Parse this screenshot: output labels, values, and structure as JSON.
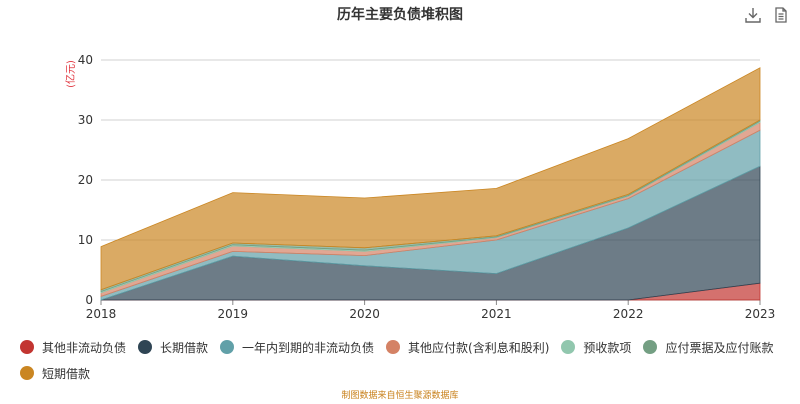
{
  "title": "历年主要负债堆积图",
  "source_note": "制图数据来自恒生聚源数据库",
  "toolbar": {
    "download_icon": "download-icon",
    "data_view_icon": "document-icon"
  },
  "chart_data": {
    "type": "area",
    "stacked": true,
    "title": "历年主要负债堆积图",
    "ylabel": "(亿元)",
    "xlabel": "",
    "x": [
      "2018",
      "2019",
      "2020",
      "2021",
      "2022",
      "2023"
    ],
    "ylim": [
      0,
      40
    ],
    "yticks": [
      0,
      10,
      20,
      30,
      40
    ],
    "grid": true,
    "legend_position": "bottom",
    "series": [
      {
        "name": "其他非流动负债",
        "color": "#c23531",
        "values": [
          0,
          0,
          0,
          0,
          0,
          2.8
        ]
      },
      {
        "name": "长期借款",
        "color": "#2f4554",
        "values": [
          0,
          7.3,
          5.7,
          4.4,
          12.0,
          19.5
        ]
      },
      {
        "name": "一年内到期的非流动负债",
        "color": "#61a0a8",
        "values": [
          0.6,
          0.8,
          1.7,
          5.6,
          4.9,
          6.0
        ]
      },
      {
        "name": "其他应付款(含利息和股利)",
        "color": "#d48265",
        "values": [
          0.6,
          0.9,
          0.7,
          0.4,
          0.4,
          1.3
        ]
      },
      {
        "name": "预收款项",
        "color": "#91c7ae",
        "values": [
          0.2,
          0.2,
          0.2,
          0.1,
          0.1,
          0.2
        ]
      },
      {
        "name": "应付票据及应付账款",
        "color": "#749f83",
        "values": [
          0.3,
          0.3,
          0.4,
          0.2,
          0.2,
          0.2
        ]
      },
      {
        "name": "短期借款",
        "color": "#ca8622",
        "values": [
          7.2,
          8.4,
          8.3,
          7.9,
          9.3,
          8.7
        ]
      }
    ]
  }
}
